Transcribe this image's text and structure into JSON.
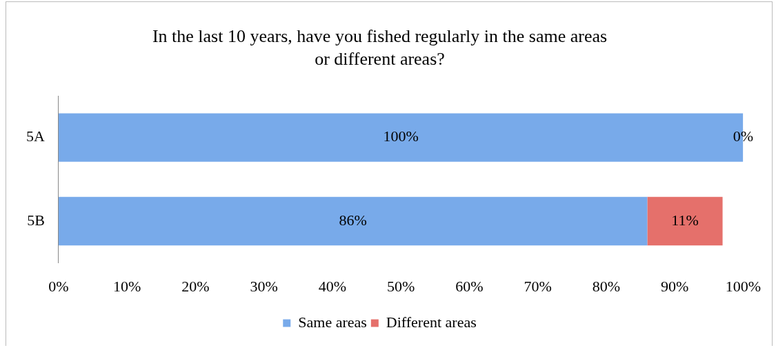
{
  "chart_data": {
    "type": "bar",
    "orientation": "horizontal",
    "stacked": true,
    "title": "In the last 10 years, have you fished regularly in the same areas\nor different areas?",
    "categories": [
      "5A",
      "5B"
    ],
    "series": [
      {
        "name": "Same areas",
        "color": "#78aaea",
        "values": [
          100,
          86
        ],
        "value_labels": [
          "100%",
          "86%"
        ]
      },
      {
        "name": "Different areas",
        "color": "#e5706b",
        "values": [
          0,
          11
        ],
        "value_labels": [
          "0%",
          "11%"
        ]
      }
    ],
    "xlim": [
      0,
      100
    ],
    "xticks": [
      {
        "value": 0,
        "label": "0%"
      },
      {
        "value": 10,
        "label": "10%"
      },
      {
        "value": 20,
        "label": "20%"
      },
      {
        "value": 30,
        "label": "30%"
      },
      {
        "value": 40,
        "label": "40%"
      },
      {
        "value": 50,
        "label": "50%"
      },
      {
        "value": 60,
        "label": "60%"
      },
      {
        "value": 70,
        "label": "70%"
      },
      {
        "value": 80,
        "label": "80%"
      },
      {
        "value": 90,
        "label": "90%"
      },
      {
        "value": 100,
        "label": "100%"
      }
    ],
    "grid": false,
    "legend": "bottom"
  }
}
